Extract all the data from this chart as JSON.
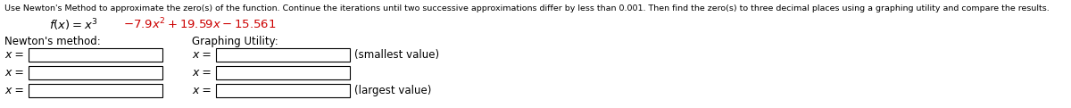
{
  "instruction": "Use Newton's Method to approximate the zero(s) of the function. Continue the iterations until two successive approximations differ by less than 0.001. Then find the zero(s) to three decimal places using a graphing utility and compare the results.",
  "newtons_label": "Newton's method:",
  "graphing_label": "Graphing Utility:",
  "x_eq": "x =",
  "smallest_label": "(smallest value)",
  "largest_label": "(largest value)",
  "bg_color": "#ffffff",
  "text_color": "#000000",
  "red_color": "#cc0000",
  "box_color": "#000000",
  "instruction_fontsize": 6.8,
  "function_fontsize": 9.5,
  "label_fontsize": 8.5,
  "row_fontsize": 9.0,
  "suffix_fontsize": 8.5
}
